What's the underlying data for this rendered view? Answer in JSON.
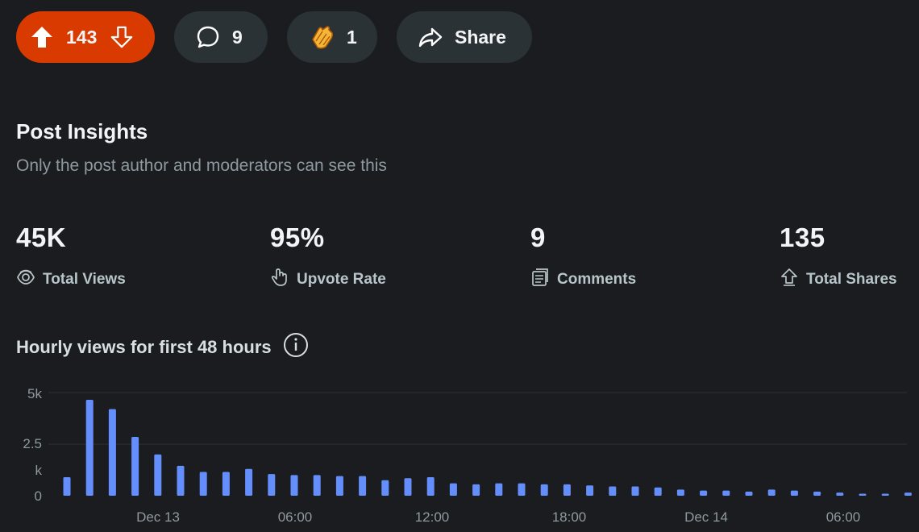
{
  "actions": {
    "upvotes": "143",
    "comments": "9",
    "awards": "1",
    "share_label": "Share"
  },
  "insights": {
    "title": "Post Insights",
    "subtitle": "Only the post author and moderators can see this",
    "stats": [
      {
        "value": "45K",
        "label": "Total Views",
        "icon": "eye-icon"
      },
      {
        "value": "95%",
        "label": "Upvote Rate",
        "icon": "hand-icon"
      },
      {
        "value": "9",
        "label": "Comments",
        "icon": "comments-icon"
      },
      {
        "value": "135",
        "label": "Total Shares",
        "icon": "share-up-icon"
      }
    ]
  },
  "chart_title": "Hourly views for first 48 hours",
  "chart_data": {
    "type": "bar",
    "y_ticks": [
      "5k",
      "2.5",
      "k",
      "0"
    ],
    "x_ticks": [
      "Dec 13",
      "06:00",
      "12:00",
      "18:00",
      "Dec 14",
      "06:00"
    ],
    "ylim": [
      0,
      5000
    ],
    "grid": true,
    "color": "#648efc",
    "values": [
      900,
      4650,
      4200,
      2850,
      2000,
      1450,
      1150,
      1150,
      1300,
      1050,
      1000,
      1000,
      950,
      950,
      750,
      850,
      900,
      600,
      550,
      600,
      600,
      550,
      550,
      500,
      450,
      450,
      400,
      300,
      250,
      250,
      200,
      300,
      250,
      200,
      150,
      100,
      100,
      150
    ]
  }
}
